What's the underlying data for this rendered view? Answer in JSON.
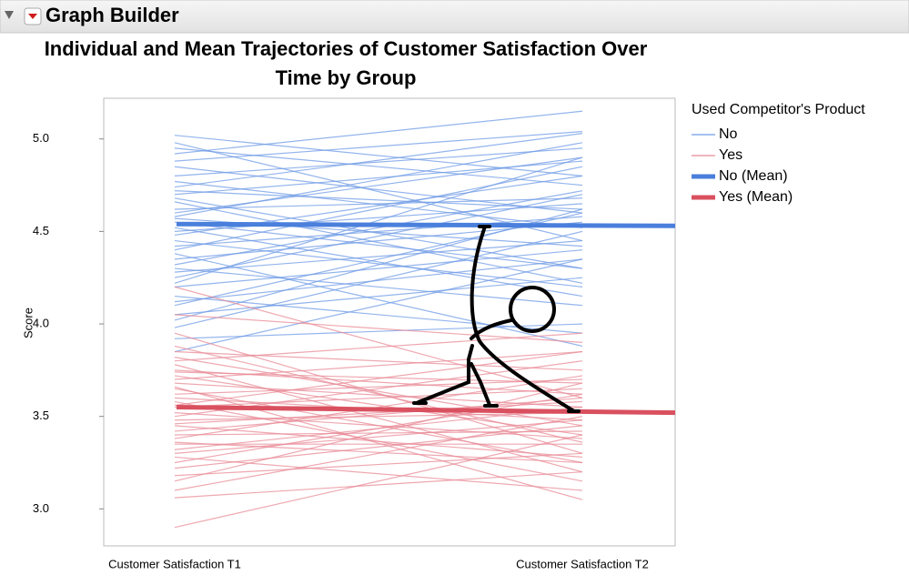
{
  "window_title": "Graph Builder",
  "chart_data": {
    "type": "trajectory",
    "title": "Individual and Mean Trajectories of Customer Satisfaction Over Time by Group",
    "ylabel": "Score",
    "categories": [
      "Customer Satisfaction T1",
      "Customer Satisfaction T2"
    ],
    "ylim": [
      2.8,
      5.22
    ],
    "yticks": [
      {
        "value": 3,
        "label": "3.0"
      },
      3.5,
      {
        "value": 4,
        "label": "4.0"
      },
      4.5,
      {
        "value": 5,
        "label": "5.0"
      }
    ],
    "legend_title": "Used Competitor's Product",
    "legend": "right",
    "series": [
      {
        "name": "No",
        "color": "#6f9be6",
        "lines": [
          [
            4.95,
            4.75
          ],
          [
            4.88,
            5.04
          ],
          [
            4.72,
            4.62
          ],
          [
            4.6,
            4.9
          ],
          [
            4.55,
            4.3
          ],
          [
            4.5,
            4.65
          ],
          [
            4.45,
            4.2
          ],
          [
            4.4,
            4.85
          ],
          [
            4.35,
            4.55
          ],
          [
            4.3,
            4.1
          ],
          [
            4.25,
            4.7
          ],
          [
            4.2,
            4.4
          ],
          [
            4.15,
            3.95
          ],
          [
            4.1,
            4.6
          ],
          [
            4.05,
            4.25
          ],
          [
            3.98,
            4.5
          ],
          [
            3.92,
            4.0
          ],
          [
            3.85,
            4.35
          ],
          [
            4.98,
            4.45
          ],
          [
            5.02,
            4.8
          ],
          [
            4.92,
            5.15
          ],
          [
            4.8,
            4.95
          ],
          [
            4.77,
            4.52
          ],
          [
            4.7,
            4.88
          ],
          [
            4.66,
            4.22
          ],
          [
            4.62,
            4.68
          ],
          [
            4.58,
            4.98
          ],
          [
            4.52,
            4.15
          ],
          [
            4.48,
            4.8
          ],
          [
            4.42,
            4.58
          ],
          [
            4.38,
            3.88
          ],
          [
            4.32,
            4.72
          ],
          [
            4.28,
            4.45
          ],
          [
            4.22,
            4.9
          ],
          [
            4.12,
            4.35
          ],
          [
            4.02,
            4.62
          ],
          [
            4.68,
            4.3
          ],
          [
            4.85,
            4.6
          ],
          [
            4.74,
            5.03
          ],
          [
            4.57,
            4.42
          ]
        ]
      },
      {
        "name": "Yes",
        "color": "#e88a96",
        "lines": [
          [
            4.2,
            3.6
          ],
          [
            4.05,
            3.9
          ],
          [
            3.95,
            3.3
          ],
          [
            3.85,
            3.75
          ],
          [
            3.82,
            3.45
          ],
          [
            3.78,
            3.2
          ],
          [
            3.75,
            3.62
          ],
          [
            3.72,
            3.4
          ],
          [
            3.7,
            3.85
          ],
          [
            3.68,
            3.55
          ],
          [
            3.65,
            3.25
          ],
          [
            3.62,
            3.7
          ],
          [
            3.6,
            3.48
          ],
          [
            3.58,
            3.15
          ],
          [
            3.55,
            3.65
          ],
          [
            3.52,
            3.38
          ],
          [
            3.5,
            3.8
          ],
          [
            3.48,
            3.52
          ],
          [
            3.45,
            3.28
          ],
          [
            3.42,
            3.6
          ],
          [
            3.4,
            3.42
          ],
          [
            3.38,
            3.72
          ],
          [
            3.35,
            3.35
          ],
          [
            3.32,
            3.55
          ],
          [
            3.28,
            3.1
          ],
          [
            3.25,
            3.62
          ],
          [
            3.22,
            3.45
          ],
          [
            3.18,
            3.3
          ],
          [
            3.15,
            3.68
          ],
          [
            3.1,
            3.5
          ],
          [
            3.06,
            3.2
          ],
          [
            2.9,
            3.4
          ],
          [
            3.8,
            3.95
          ],
          [
            3.66,
            3.05
          ],
          [
            3.56,
            3.85
          ],
          [
            3.46,
            3.58
          ],
          [
            3.36,
            3.25
          ],
          [
            3.3,
            3.48
          ],
          [
            3.88,
            3.36
          ],
          [
            3.74,
            3.68
          ]
        ]
      },
      {
        "name": "No (Mean)",
        "color": "#4a7fdc",
        "values": [
          4.54,
          4.53
        ]
      },
      {
        "name": "Yes (Mean)",
        "color": "#d9505f",
        "values": [
          3.55,
          3.52
        ]
      }
    ]
  }
}
